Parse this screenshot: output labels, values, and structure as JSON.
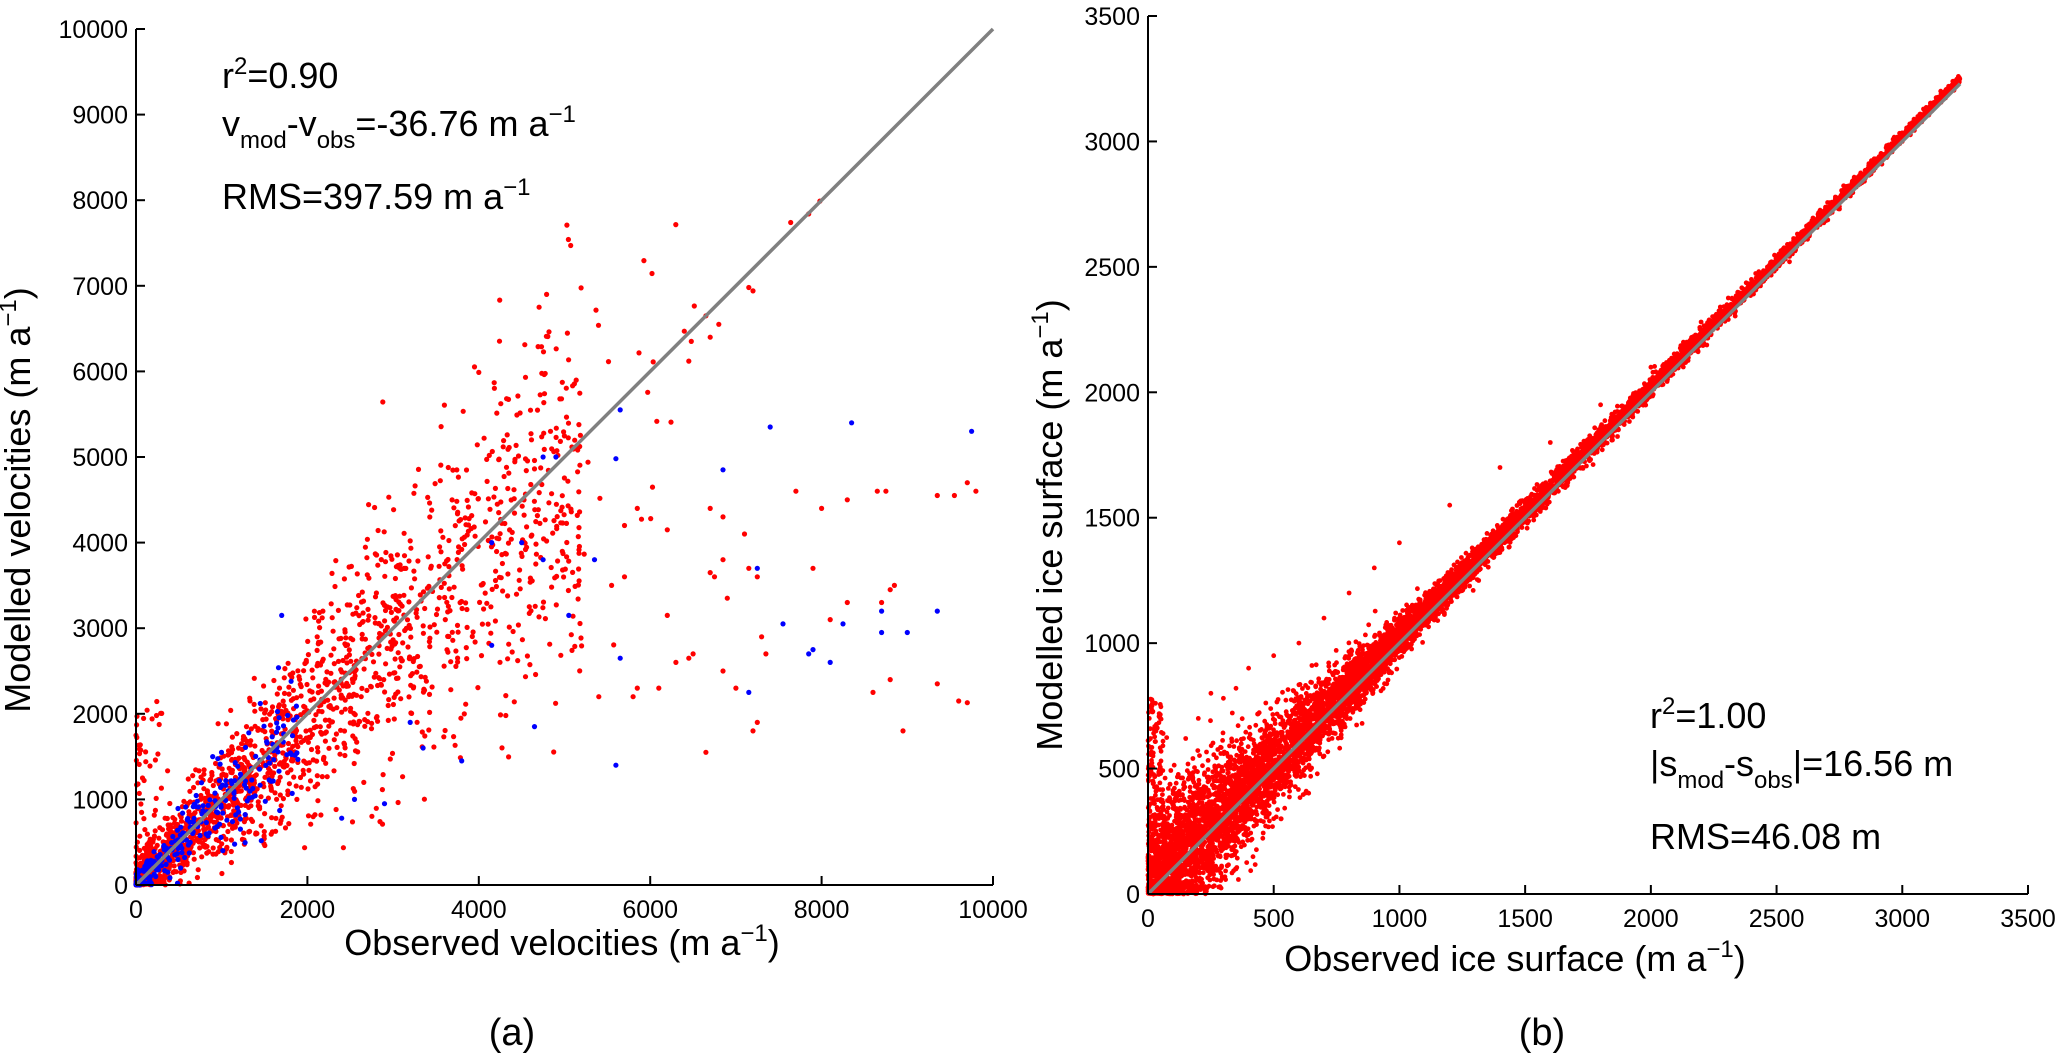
{
  "colors": {
    "background": "#ffffff",
    "axis": "#000000",
    "identity_line": "#808080",
    "series_red": "#ff0000",
    "series_blue": "#0000ff"
  },
  "chart_data": [
    {
      "type": "scatter",
      "panel_label": "(a)",
      "xlabel": {
        "base": "Observed velocities (m a",
        "sup": "−1",
        "tail": ")"
      },
      "ylabel": {
        "base": "Modelled velocities (m a",
        "sup": "−1",
        "tail": ")"
      },
      "xlim": [
        0,
        10000
      ],
      "ylim": [
        0,
        10000
      ],
      "xticks": [
        0,
        2000,
        4000,
        6000,
        8000,
        10000
      ],
      "yticks": [
        0,
        1000,
        2000,
        3000,
        4000,
        5000,
        6000,
        7000,
        8000,
        9000,
        10000
      ],
      "xtick_labels": [
        "0",
        "2000",
        "4000",
        "6000",
        "8000",
        "10000"
      ],
      "ytick_labels": [
        "0",
        "1000",
        "2000",
        "3000",
        "4000",
        "5000",
        "6000",
        "7000",
        "8000",
        "9000",
        "10000"
      ],
      "identity_line": [
        0,
        10000
      ],
      "annotations": {
        "r2": {
          "a": "r",
          "sup": "2",
          "b": "=0.90"
        },
        "bias": {
          "a": "v",
          "sub1": "mod",
          "b": "-v",
          "sub2": "obs",
          "c": "=-36.76 m a",
          "sup": "−1"
        },
        "rms": {
          "a": "RMS=397.59 m a",
          "sup": "−1"
        }
      },
      "series": [
        {
          "name": "red points",
          "color": "#ff0000",
          "generator": {
            "n": 1900,
            "seed": 11,
            "model": "velocity-red"
          },
          "points": [
            [
              6650,
              6650
            ],
            [
              7640,
              7740
            ],
            [
              7850,
              7840
            ],
            [
              7980,
              7990
            ],
            [
              6480,
              6350
            ],
            [
              6450,
              6120
            ],
            [
              6700,
              6400
            ],
            [
              6800,
              6550
            ],
            [
              7150,
              6980
            ],
            [
              7200,
              6940
            ],
            [
              7700,
              4600
            ],
            [
              8650,
              4600
            ],
            [
              8750,
              4600
            ],
            [
              9350,
              4550
            ],
            [
              9550,
              4550
            ],
            [
              9700,
              4700
            ],
            [
              9800,
              4600
            ],
            [
              8300,
              4500
            ],
            [
              8000,
              4400
            ],
            [
              8850,
              3500
            ],
            [
              8950,
              1800
            ],
            [
              9600,
              2150
            ],
            [
              9700,
              2130
            ],
            [
              9350,
              2350
            ],
            [
              8600,
              2250
            ],
            [
              8800,
              2400
            ],
            [
              6650,
              1550
            ],
            [
              7200,
              1800
            ],
            [
              7250,
              1900
            ],
            [
              6100,
              2300
            ],
            [
              5800,
              2200
            ],
            [
              5850,
              2300
            ],
            [
              5400,
              2200
            ],
            [
              7900,
              3700
            ],
            [
              8100,
              3100
            ],
            [
              8300,
              3300
            ],
            [
              8700,
              3300
            ],
            [
              8800,
              3450
            ],
            [
              5700,
              3600
            ],
            [
              5700,
              4200
            ],
            [
              5850,
              4400
            ],
            [
              6700,
              4400
            ],
            [
              6850,
              4300
            ],
            [
              5550,
              3500
            ],
            [
              6200,
              4150
            ],
            [
              6700,
              3650
            ],
            [
              6900,
              3350
            ],
            [
              7100,
              4100
            ],
            [
              7150,
              3700
            ],
            [
              7250,
              3600
            ],
            [
              7300,
              2900
            ],
            [
              7350,
              2700
            ],
            [
              7000,
              2300
            ],
            [
              6300,
              2600
            ],
            [
              6200,
              3150
            ],
            [
              6850,
              3800
            ],
            [
              6850,
              2500
            ],
            [
              6450,
              2650
            ],
            [
              6500,
              2700
            ],
            [
              6750,
              3600
            ]
          ]
        },
        {
          "name": "blue points",
          "color": "#0000ff",
          "generator": {
            "n": 260,
            "seed": 23,
            "model": "velocity-blue"
          },
          "points": [
            [
              7400,
              5350
            ],
            [
              8350,
              5400
            ],
            [
              9750,
              5300
            ],
            [
              6850,
              4850
            ],
            [
              5600,
              4980
            ],
            [
              5650,
              5550
            ],
            [
              4150,
              4000
            ],
            [
              4500,
              4000
            ],
            [
              4750,
              3800
            ],
            [
              5350,
              3800
            ],
            [
              7250,
              3700
            ],
            [
              7550,
              3050
            ],
            [
              8250,
              3050
            ],
            [
              8700,
              3200
            ],
            [
              9350,
              3200
            ],
            [
              8700,
              2950
            ],
            [
              9000,
              2950
            ],
            [
              7850,
              2700
            ],
            [
              7900,
              2750
            ],
            [
              8100,
              2600
            ],
            [
              7150,
              2250
            ],
            [
              5650,
              2650
            ],
            [
              5600,
              1400
            ],
            [
              4650,
              1850
            ],
            [
              3800,
              1450
            ],
            [
              3350,
              1600
            ],
            [
              4150,
              2800
            ],
            [
              5050,
              3150
            ],
            [
              1700,
              3150
            ],
            [
              2550,
              1000
            ],
            [
              2900,
              950
            ],
            [
              2400,
              780
            ],
            [
              3200,
              1900
            ],
            [
              4900,
              5000
            ],
            [
              4750,
              5000
            ]
          ]
        }
      ]
    },
    {
      "type": "scatter",
      "panel_label": "(b)",
      "xlabel": {
        "base": "Observed ice surface (m a",
        "sup": "−1",
        "tail": ")"
      },
      "ylabel": {
        "base": "Modelled ice surface (m a",
        "sup": "−1",
        "tail": ")"
      },
      "xlim": [
        0,
        3500
      ],
      "ylim": [
        0,
        3500
      ],
      "xticks": [
        0,
        500,
        1000,
        1500,
        2000,
        2500,
        3000,
        3500
      ],
      "yticks": [
        0,
        500,
        1000,
        1500,
        2000,
        2500,
        3000,
        3500
      ],
      "xtick_labels": [
        "0",
        "500",
        "1000",
        "1500",
        "2000",
        "2500",
        "3000",
        "3500"
      ],
      "ytick_labels": [
        "0",
        "500",
        "1000",
        "1500",
        "2000",
        "2500",
        "3000",
        "3500"
      ],
      "identity_line": [
        0,
        3230
      ],
      "annotations": {
        "r2": {
          "a": "r",
          "sup": "2",
          "b": "=1.00"
        },
        "bias": {
          "a": "|s",
          "sub1": "mod",
          "b": "-s",
          "sub2": "obs",
          "c": "|=16.56 m"
        },
        "rms": {
          "a": "RMS=46.08 m"
        }
      },
      "series": [
        {
          "name": "ice surface points",
          "color": "#ff0000",
          "generator": {
            "n": 9000,
            "seed": 37,
            "model": "surface"
          },
          "points": [
            [
              30,
              760
            ],
            [
              10,
              620
            ],
            [
              20,
              550
            ],
            [
              50,
              480
            ],
            [
              5,
              700
            ],
            [
              60,
              350
            ],
            [
              100,
              400
            ],
            [
              150,
              620
            ],
            [
              200,
              700
            ],
            [
              250,
              800
            ],
            [
              300,
              780
            ],
            [
              350,
              820
            ],
            [
              400,
              900
            ],
            [
              500,
              950
            ],
            [
              600,
              1000
            ],
            [
              700,
              1100
            ],
            [
              800,
              1200
            ],
            [
              900,
              1300
            ],
            [
              1000,
              1400
            ],
            [
              1200,
              1550
            ],
            [
              1400,
              1700
            ],
            [
              1600,
              1800
            ],
            [
              1800,
              1950
            ],
            [
              2000,
              2100
            ],
            [
              2200,
              2280
            ],
            [
              2400,
              2450
            ],
            [
              2600,
              2620
            ],
            [
              2800,
              2800
            ],
            [
              3000,
              3000
            ],
            [
              3200,
              3220
            ],
            [
              350,
              100
            ],
            [
              500,
              300
            ],
            [
              700,
              550
            ]
          ]
        }
      ]
    }
  ]
}
